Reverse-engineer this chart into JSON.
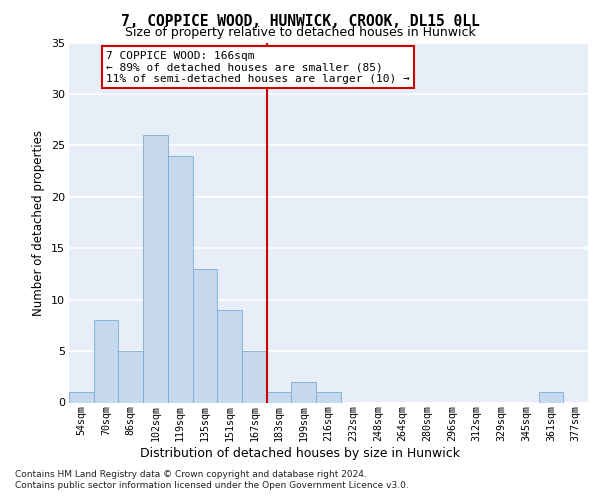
{
  "title": "7, COPPICE WOOD, HUNWICK, CROOK, DL15 0LL",
  "subtitle": "Size of property relative to detached houses in Hunwick",
  "xlabel": "Distribution of detached houses by size in Hunwick",
  "ylabel": "Number of detached properties",
  "bin_labels": [
    "54sqm",
    "70sqm",
    "86sqm",
    "102sqm",
    "119sqm",
    "135sqm",
    "151sqm",
    "167sqm",
    "183sqm",
    "199sqm",
    "216sqm",
    "232sqm",
    "248sqm",
    "264sqm",
    "280sqm",
    "296sqm",
    "312sqm",
    "329sqm",
    "345sqm",
    "361sqm",
    "377sqm"
  ],
  "bar_values": [
    1,
    8,
    5,
    26,
    24,
    13,
    9,
    5,
    1,
    2,
    1,
    0,
    0,
    0,
    0,
    0,
    0,
    0,
    0,
    1,
    0
  ],
  "bar_color": "#c5d8ee",
  "bar_edge_color": "#7aadd4",
  "vline_x": 7.5,
  "vline_color": "#cc0000",
  "annotation_text": "7 COPPICE WOOD: 166sqm\n← 89% of detached houses are smaller (85)\n11% of semi-detached houses are larger (10) →",
  "annotation_box_color": "#ffffff",
  "annotation_box_edge": "#cc0000",
  "ylim": [
    0,
    35
  ],
  "yticks": [
    0,
    5,
    10,
    15,
    20,
    25,
    30,
    35
  ],
  "bg_color": "#e8eef7",
  "grid_color": "#ffffff",
  "footer_line1": "Contains HM Land Registry data © Crown copyright and database right 2024.",
  "footer_line2": "Contains public sector information licensed under the Open Government Licence v3.0."
}
